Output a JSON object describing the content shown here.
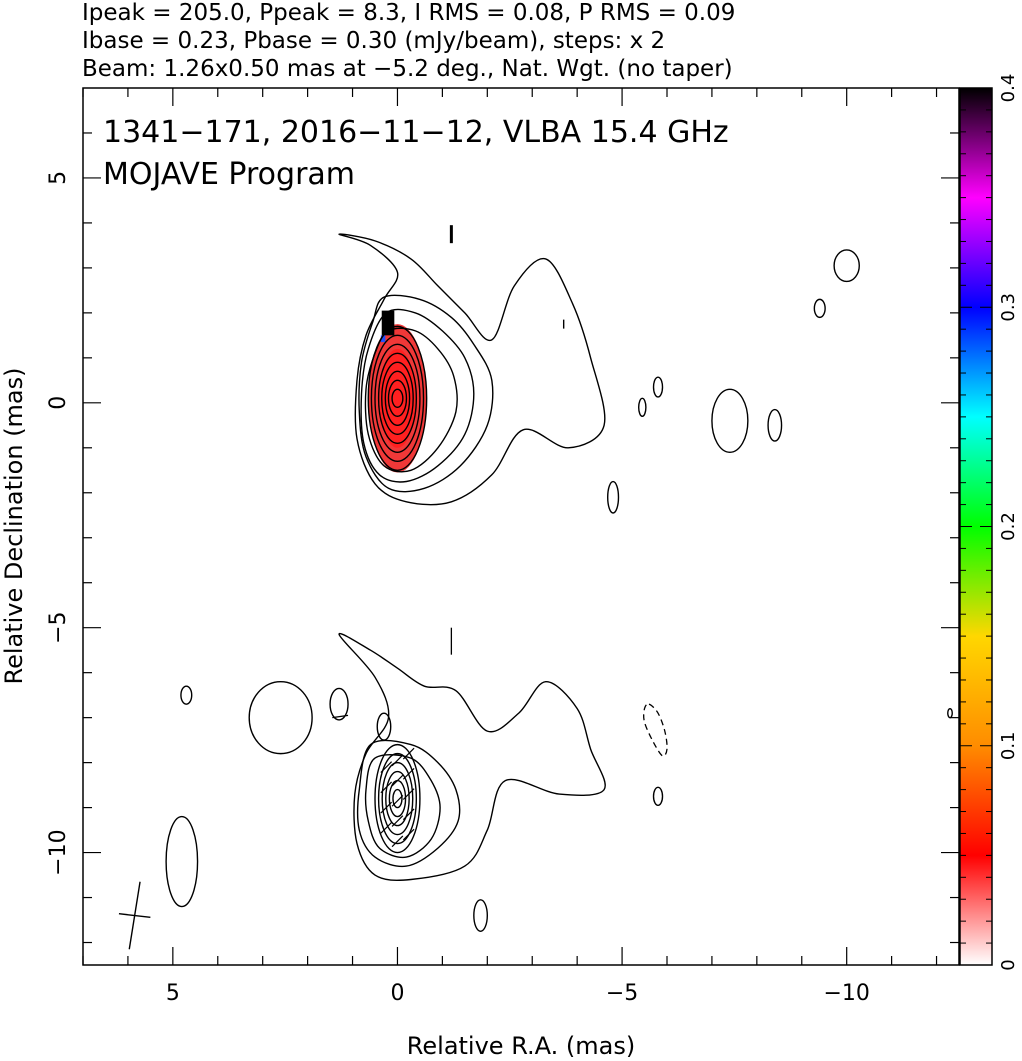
{
  "header": {
    "line1": "Ipeak = 205.0, Ppeak = 8.3, I RMS = 0.08, P RMS = 0.09",
    "line2": "Ibase = 0.23, Pbase = 0.30 (mJy/beam), steps: x 2",
    "line3": "Beam: 1.26x0.50 mas at −5.2 deg., Nat. Wgt. (no taper)"
  },
  "chart_data": {
    "type": "heatmap",
    "annotation_line1": "1341−171, 2016−11−12, VLBA 15.4 GHz",
    "annotation_line2": "MOJAVE Program",
    "xlabel": "Relative R.A. (mas)",
    "ylabel": "Relative Declination (mas)",
    "xlim": [
      7,
      -12.5
    ],
    "ylim": [
      -12.5,
      7
    ],
    "x_ticks": [
      {
        "value": 5,
        "label": "5"
      },
      {
        "value": 0,
        "label": "0"
      },
      {
        "value": -5,
        "label": "−5"
      },
      {
        "value": -10,
        "label": "−10"
      }
    ],
    "y_ticks": [
      {
        "value": 5,
        "label": "5"
      },
      {
        "value": 0,
        "label": "0"
      },
      {
        "value": -5,
        "label": "−5"
      },
      {
        "value": -10,
        "label": "−10"
      }
    ],
    "colorbar": {
      "range": [
        0,
        0.4
      ],
      "ticks": [
        {
          "value": 0,
          "label": "0"
        },
        {
          "value": 0.1,
          "label": "0.1"
        },
        {
          "value": 0.2,
          "label": "0.2"
        },
        {
          "value": 0.3,
          "label": "0.3"
        },
        {
          "value": 0.4,
          "label": "0.4"
        }
      ],
      "colors": [
        "#ffffff",
        "#ff0000",
        "#ff8c00",
        "#ffd700",
        "#00ff00",
        "#00ffff",
        "#0000ff",
        "#ff00ff",
        "#000000"
      ]
    },
    "core": {
      "x": 0.0,
      "y": 0.1
    },
    "upper_contours": [
      [
        [
          1.3,
          3.75
        ],
        [
          0.5,
          3.6
        ],
        [
          -0.3,
          3.2
        ],
        [
          -0.9,
          2.6
        ],
        [
          -1.5,
          2.0
        ],
        [
          -2.1,
          1.4
        ],
        [
          -2.6,
          2.6
        ],
        [
          -3.3,
          3.2
        ],
        [
          -3.9,
          2.2
        ],
        [
          -4.3,
          1.0
        ],
        [
          -4.6,
          -0.5
        ],
        [
          -3.8,
          -1.0
        ],
        [
          -2.8,
          -0.6
        ],
        [
          -2.1,
          -1.6
        ],
        [
          -1.2,
          -2.2
        ],
        [
          -0.2,
          -2.2
        ],
        [
          0.5,
          -1.8
        ],
        [
          0.9,
          -0.8
        ],
        [
          0.9,
          0.5
        ],
        [
          0.7,
          1.5
        ],
        [
          0.3,
          2.3
        ],
        [
          0.0,
          2.9
        ],
        [
          0.6,
          3.5
        ]
      ],
      [
        [
          0.3,
          2.35
        ],
        [
          -0.5,
          2.3
        ],
        [
          -1.2,
          1.9
        ],
        [
          -1.7,
          1.3
        ],
        [
          -2.1,
          0.5
        ],
        [
          -2.0,
          -0.5
        ],
        [
          -1.4,
          -1.4
        ],
        [
          -0.6,
          -1.9
        ],
        [
          0.2,
          -1.9
        ],
        [
          0.7,
          -1.2
        ],
        [
          0.85,
          -0.2
        ],
        [
          0.8,
          0.9
        ],
        [
          0.55,
          1.8
        ]
      ],
      [
        [
          0.25,
          2.0
        ],
        [
          -0.4,
          2.0
        ],
        [
          -1.0,
          1.6
        ],
        [
          -1.5,
          1.0
        ],
        [
          -1.7,
          0.2
        ],
        [
          -1.5,
          -0.7
        ],
        [
          -0.9,
          -1.4
        ],
        [
          -0.2,
          -1.75
        ],
        [
          0.4,
          -1.6
        ],
        [
          0.75,
          -0.9
        ],
        [
          0.8,
          0.2
        ],
        [
          0.65,
          1.2
        ]
      ],
      [
        [
          0.2,
          1.6
        ],
        [
          -0.4,
          1.6
        ],
        [
          -0.9,
          1.2
        ],
        [
          -1.25,
          0.6
        ],
        [
          -1.3,
          -0.2
        ],
        [
          -0.9,
          -1.0
        ],
        [
          -0.3,
          -1.5
        ],
        [
          0.3,
          -1.4
        ],
        [
          0.65,
          -0.7
        ],
        [
          0.7,
          0.3
        ],
        [
          0.5,
          1.1
        ]
      ]
    ],
    "core_rings": [
      [
        0.65,
        1.6
      ],
      [
        0.58,
        1.4
      ],
      [
        0.5,
        1.2
      ],
      [
        0.42,
        1.0
      ],
      [
        0.35,
        0.8
      ],
      [
        0.27,
        0.6
      ],
      [
        0.2,
        0.4
      ],
      [
        0.12,
        0.2
      ]
    ],
    "upper_islands": [
      [
        -10.0,
        3.05,
        0.28,
        0.35
      ],
      [
        -9.4,
        2.1,
        0.12,
        0.2
      ],
      [
        -7.4,
        -0.4,
        0.4,
        0.7
      ],
      [
        -8.4,
        -0.5,
        0.15,
        0.35
      ],
      [
        -5.8,
        0.35,
        0.1,
        0.22
      ],
      [
        -5.45,
        -0.1,
        0.08,
        0.2
      ],
      [
        -4.8,
        -2.1,
        0.12,
        0.35
      ]
    ],
    "lower_contours": [
      [
        [
          1.3,
          -5.15
        ],
        [
          0.6,
          -5.5
        ],
        [
          0.0,
          -5.9
        ],
        [
          -0.6,
          -6.3
        ],
        [
          -1.3,
          -6.4
        ],
        [
          -2.0,
          -7.3
        ],
        [
          -2.7,
          -6.9
        ],
        [
          -3.3,
          -6.2
        ],
        [
          -4.0,
          -6.8
        ],
        [
          -4.3,
          -7.7
        ],
        [
          -4.6,
          -8.6
        ],
        [
          -3.6,
          -8.7
        ],
        [
          -2.4,
          -8.4
        ],
        [
          -2.0,
          -9.5
        ],
        [
          -1.5,
          -10.3
        ],
        [
          -0.3,
          -10.6
        ],
        [
          0.5,
          -10.5
        ],
        [
          0.9,
          -9.8
        ],
        [
          0.95,
          -8.7
        ],
        [
          0.7,
          -7.8
        ],
        [
          0.2,
          -7.0
        ],
        [
          0.5,
          -6.1
        ]
      ],
      [
        [
          0.6,
          -7.6
        ],
        [
          -0.3,
          -7.6
        ],
        [
          -0.9,
          -8.0
        ],
        [
          -1.3,
          -8.6
        ],
        [
          -1.35,
          -9.3
        ],
        [
          -0.9,
          -9.9
        ],
        [
          -0.2,
          -10.3
        ],
        [
          0.5,
          -10.1
        ],
        [
          0.85,
          -9.5
        ],
        [
          0.85,
          -8.6
        ]
      ],
      [
        [
          0.5,
          -7.9
        ],
        [
          -0.3,
          -7.9
        ],
        [
          -0.75,
          -8.4
        ],
        [
          -0.95,
          -9.0
        ],
        [
          -0.75,
          -9.7
        ],
        [
          -0.2,
          -10.1
        ],
        [
          0.4,
          -9.9
        ],
        [
          0.65,
          -9.3
        ],
        [
          0.7,
          -8.6
        ]
      ]
    ],
    "lower_rings": [
      [
        0.5,
        1.2
      ],
      [
        0.42,
        1.0
      ],
      [
        0.34,
        0.8
      ],
      [
        0.26,
        0.6
      ],
      [
        0.18,
        0.4
      ],
      [
        0.1,
        0.2
      ]
    ],
    "lower_core": {
      "x": 0.0,
      "y": -8.8
    },
    "lower_islands": [
      [
        4.8,
        -10.2,
        0.35,
        1.0
      ],
      [
        2.6,
        -7.0,
        0.7,
        0.8
      ],
      [
        4.7,
        -6.5,
        0.12,
        0.2
      ],
      [
        1.3,
        -6.7,
        0.2,
        0.35
      ],
      [
        0.3,
        -7.2,
        0.15,
        0.3
      ],
      [
        -1.85,
        -11.4,
        0.15,
        0.35
      ],
      [
        -5.8,
        -8.75,
        0.1,
        0.2
      ],
      [
        -12.3,
        -6.9,
        0.05,
        0.1
      ]
    ],
    "dashed_island": [
      [
        -5.6,
        -6.7
      ],
      [
        -5.8,
        -6.9
      ],
      [
        -5.95,
        -7.3
      ],
      [
        -6.0,
        -7.7
      ],
      [
        -5.9,
        -7.85
      ],
      [
        -5.7,
        -7.55
      ],
      [
        -5.5,
        -7.1
      ],
      [
        -5.5,
        -6.8
      ]
    ],
    "beam_marker": {
      "x": 5.85,
      "y": -11.4
    }
  }
}
